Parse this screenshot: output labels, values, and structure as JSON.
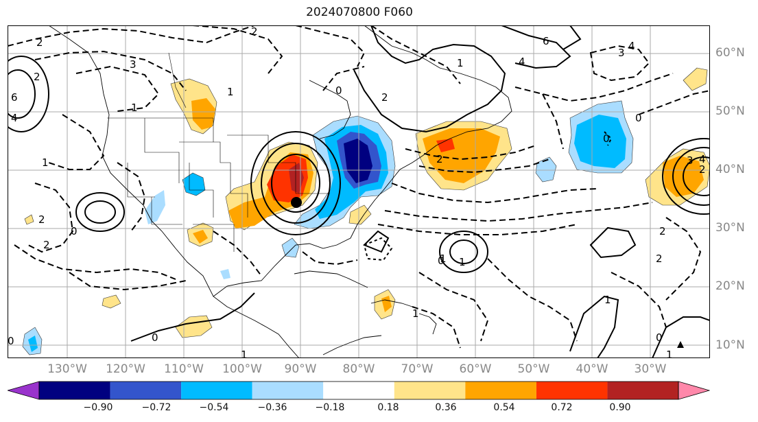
{
  "title": "2024070800 F060",
  "lat_labels": [
    "60°N",
    "50°N",
    "40°N",
    "30°N",
    "20°N",
    "10°N"
  ],
  "lon_labels": [
    "130°W",
    "120°W",
    "110°W",
    "100°W",
    "90°W",
    "80°W",
    "70°W",
    "60°W",
    "50°W",
    "40°W",
    "30°W"
  ],
  "colorbar": {
    "ticks": [
      "−0.90",
      "−0.72",
      "−0.54",
      "−0.36",
      "−0.18",
      "0.18",
      "0.36",
      "0.54",
      "0.72",
      "0.90"
    ],
    "colors": [
      "#9933cc",
      "#000080",
      "#3355cc",
      "#00bbff",
      "#aaddff",
      "#ffffff",
      "#ffe48a",
      "#ffa500",
      "#ff3300",
      "#b22222",
      "#ff88aa"
    ]
  },
  "contour_labels": [
    "2",
    "2",
    "4",
    "6",
    "6",
    "4",
    "4",
    "3",
    "2",
    "3",
    "1",
    "1",
    "0",
    "0",
    "0",
    "0",
    "0",
    "0",
    "1",
    "1",
    "2",
    "2",
    "2",
    "2",
    "1",
    "2",
    "1",
    "0",
    "3",
    "4",
    "1",
    "0",
    "2",
    "2",
    "1",
    "1",
    "1"
  ]
}
